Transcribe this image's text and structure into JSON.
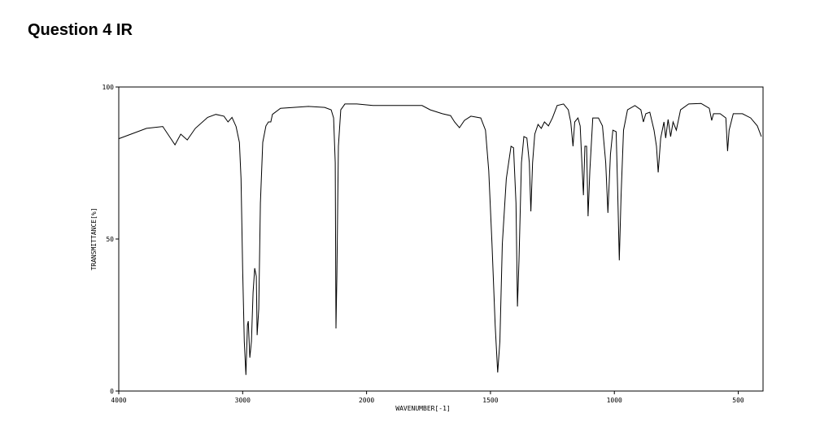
{
  "chart_data": {
    "type": "line",
    "title": "Question 4 IR",
    "xlabel": "WAVENUMBER[-1]",
    "ylabel": "TRANSMITTANCE[%]",
    "color": "#000000",
    "xlim": [
      4000,
      400
    ],
    "xticks": [
      4000,
      3000,
      2000,
      1500,
      1000,
      500
    ],
    "ylim": [
      0,
      100
    ],
    "yticks": [
      0,
      50,
      100
    ],
    "x": [
      4000,
      3776,
      3645,
      3579,
      3546,
      3500,
      3447,
      3382,
      3283,
      3217,
      3151,
      3118,
      3086,
      3053,
      3026,
      3013,
      3000,
      2987,
      2974,
      2961,
      2955,
      2942,
      2929,
      2916,
      2903,
      2890,
      2883,
      2870,
      2857,
      2838,
      2812,
      2792,
      2773,
      2760,
      2695,
      2468,
      2338,
      2286,
      2266,
      2253,
      2247,
      2240,
      2227,
      2208,
      2175,
      2078,
      1974,
      1776,
      1743,
      1694,
      1661,
      1645,
      1625,
      1605,
      1579,
      1539,
      1520,
      1507,
      1494,
      1481,
      1471,
      1462,
      1452,
      1436,
      1417,
      1407,
      1397,
      1391,
      1385,
      1375,
      1365,
      1353,
      1343,
      1337,
      1330,
      1321,
      1308,
      1295,
      1282,
      1266,
      1250,
      1231,
      1205,
      1186,
      1176,
      1167,
      1160,
      1147,
      1138,
      1131,
      1125,
      1119,
      1112,
      1106,
      1099,
      1087,
      1064,
      1048,
      1035,
      1026,
      1016,
      1006,
      993,
      987,
      980,
      973,
      963,
      947,
      917,
      893,
      883,
      873,
      857,
      840,
      830,
      823,
      813,
      800,
      793,
      783,
      773,
      763,
      750,
      733,
      700,
      650,
      617,
      607,
      600,
      573,
      550,
      543,
      537,
      520,
      483,
      450,
      423,
      407
    ],
    "values": [
      83,
      86.4,
      87,
      83,
      81,
      84.5,
      82.6,
      86.4,
      90,
      91,
      90.4,
      88.5,
      90,
      87,
      81.8,
      69.8,
      40,
      16.3,
      5.3,
      21.7,
      23,
      11,
      16.3,
      32.4,
      40.4,
      37.7,
      18.4,
      27,
      61.8,
      81.8,
      87.2,
      88.5,
      88.5,
      91,
      93,
      93.6,
      93.3,
      92.5,
      89.8,
      75.1,
      20.6,
      37.7,
      80.5,
      92.5,
      94.4,
      94.4,
      93.9,
      93.9,
      92.5,
      91.2,
      90.6,
      88.5,
      86.6,
      89,
      90.4,
      89.8,
      85.8,
      72.5,
      48.4,
      21.7,
      6.1,
      16.3,
      48.4,
      69.8,
      80.5,
      80,
      61.8,
      27.8,
      43,
      75.1,
      83.7,
      83.2,
      75.1,
      59.1,
      75.1,
      84.5,
      87.7,
      86.4,
      88.5,
      87.2,
      89.8,
      93.9,
      94.4,
      92.5,
      88.5,
      80.5,
      88.5,
      89.8,
      87.2,
      75.1,
      64.4,
      80.5,
      80.5,
      57.5,
      72.5,
      89.8,
      89.8,
      87.2,
      75.1,
      58.6,
      77.8,
      85.8,
      85.3,
      67.1,
      43,
      64.4,
      85.8,
      92.5,
      93.9,
      92.5,
      88.5,
      91.2,
      91.7,
      85.8,
      80.5,
      71.9,
      83.2,
      88.5,
      83.2,
      89.3,
      83.7,
      88.5,
      85.8,
      92.5,
      94.4,
      94.6,
      93,
      89,
      91.2,
      91.2,
      89.8,
      78.9,
      85.8,
      91.2,
      91.2,
      89.8,
      87.2,
      83.7
    ]
  }
}
